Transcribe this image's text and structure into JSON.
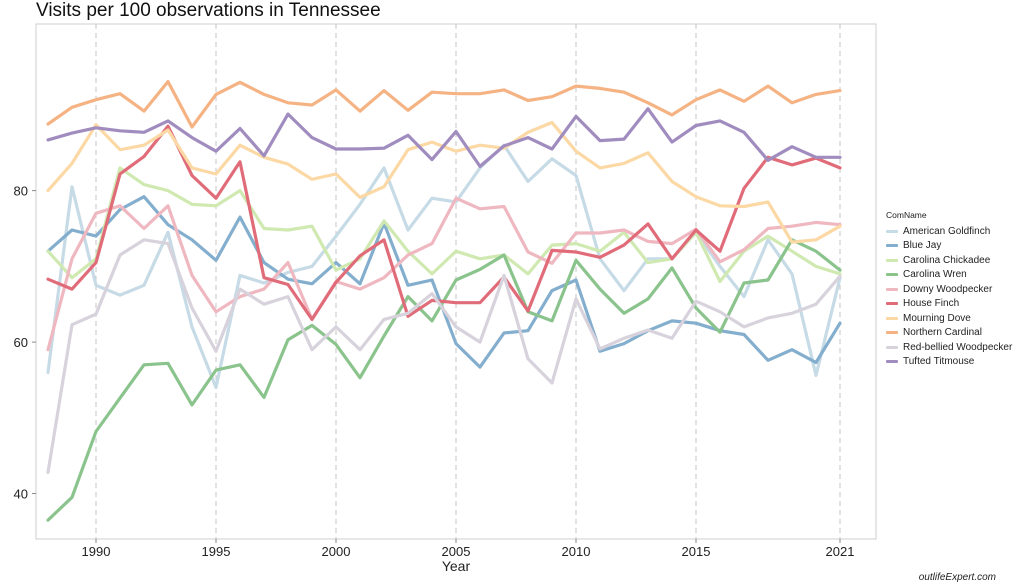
{
  "chart_data": {
    "type": "line",
    "title": "Visits per 100 observations in Tennessee",
    "xlabel": "Year",
    "ylabel": "",
    "xlim": [
      1987.5,
      2022.5
    ],
    "ylim": [
      34,
      102
    ],
    "x_ticks": [
      1990,
      1995,
      2000,
      2005,
      2010,
      2015,
      2021
    ],
    "y_ticks": [
      40,
      60,
      80
    ],
    "grid": "dashed vertical lines at x ticks",
    "legend": {
      "title": "ComName",
      "position": "right"
    },
    "x": [
      1988,
      1989,
      1990,
      1991,
      1992,
      1993,
      1994,
      1995,
      1996,
      1997,
      1998,
      1999,
      2000,
      2001,
      2002,
      2003,
      2004,
      2005,
      2006,
      2007,
      2008,
      2009,
      2010,
      2011,
      2012,
      2013,
      2014,
      2015,
      2016,
      2017,
      2018,
      2019,
      2020,
      2021
    ],
    "series": [
      {
        "name": "American Goldfinch",
        "color": "#c6dbe6",
        "values": [
          56,
          80.5,
          67.5,
          66.2,
          67.5,
          74.5,
          62,
          54,
          68.8,
          67.8,
          69.2,
          70,
          74,
          78.2,
          83,
          74.8,
          79,
          78.5,
          83,
          86,
          81.2,
          84.2,
          82,
          71,
          66.8,
          71,
          71,
          74.5,
          70,
          66,
          73.5,
          69,
          55.6,
          68.5
        ]
      },
      {
        "name": "Blue Jay",
        "color": "#84aecd",
        "values": [
          72,
          74.8,
          74,
          77.5,
          79.2,
          75.5,
          73.5,
          70.8,
          76.5,
          70.5,
          68.3,
          67.7,
          70.5,
          67.7,
          75.7,
          67.5,
          68.2,
          59.8,
          56.7,
          61.2,
          61.5,
          66.8,
          68.2,
          58.8,
          59.8,
          61.5,
          62.8,
          62.5,
          61.5,
          61,
          57.6,
          59,
          57.3,
          62.5
        ]
      },
      {
        "name": "Carolina Chickadee",
        "color": "#cfe9b1",
        "values": [
          72,
          68.5,
          71,
          83,
          80.8,
          80,
          78.2,
          78,
          80,
          75,
          74.8,
          75.3,
          69.5,
          71,
          76,
          72,
          69,
          72,
          71,
          71.5,
          69,
          72.8,
          73,
          72,
          74.5,
          70.5,
          71,
          74.5,
          68,
          72,
          74,
          72,
          70,
          69
        ]
      },
      {
        "name": "Carolina Wren",
        "color": "#8ac48c",
        "values": [
          36.5,
          39.5,
          48.2,
          52.6,
          57,
          57.2,
          51.7,
          56.3,
          57,
          52.7,
          60.3,
          62.2,
          59.7,
          55.3,
          60.8,
          66,
          62.8,
          68.2,
          69.6,
          71.5,
          64,
          62.8,
          70.8,
          67,
          63.8,
          65.7,
          69.8,
          64.5,
          61.3,
          67.8,
          68.2,
          73.5,
          72,
          69.5
        ]
      },
      {
        "name": "Downy Woodpecker",
        "color": "#efb8c1",
        "values": [
          59,
          71,
          77,
          78,
          75,
          78,
          68.8,
          64,
          66,
          67,
          70.5,
          63,
          68,
          67,
          68.5,
          71.5,
          73,
          79,
          77.6,
          77.9,
          71.9,
          70.4,
          74.4,
          74.4,
          74.8,
          73.3,
          73,
          74.9,
          70.6,
          72.2,
          75,
          75.3,
          75.8,
          75.5
        ]
      },
      {
        "name": "House Finch",
        "color": "#e16c79",
        "values": [
          68.3,
          67,
          70.5,
          82.2,
          84.5,
          88.5,
          82,
          79,
          83.8,
          68.5,
          67.6,
          63,
          67.9,
          71.4,
          73.5,
          63.4,
          65.5,
          65.2,
          65.2,
          68.6,
          64.1,
          72.1,
          71.9,
          71.2,
          72.8,
          75.6,
          71,
          74.8,
          72,
          80.3,
          84.4,
          83.4,
          84.3,
          83
        ]
      },
      {
        "name": "Mourning Dove",
        "color": "#fbd8a4",
        "values": [
          80,
          83.6,
          88.7,
          85.4,
          86,
          88,
          83,
          82.2,
          86,
          84.4,
          83.5,
          81.5,
          82.2,
          79.1,
          80.5,
          85.4,
          86.4,
          85.2,
          86,
          85.6,
          87.7,
          89,
          85.2,
          83,
          83.6,
          85,
          81.2,
          79.2,
          78,
          77.9,
          78.5,
          73.2,
          73.5,
          75.3
        ]
      },
      {
        "name": "Northern Cardinal",
        "color": "#f5b384",
        "values": [
          88.8,
          91,
          92,
          92.8,
          90.5,
          94.4,
          88.4,
          92.7,
          94.3,
          92.7,
          91.6,
          91.3,
          93.3,
          90.5,
          93.2,
          90.6,
          93,
          92.8,
          92.8,
          93.3,
          91.9,
          92.4,
          93.8,
          93.5,
          93,
          91.6,
          90,
          92,
          93.3,
          91.8,
          93.8,
          91.6,
          92.7,
          93.2
        ]
      },
      {
        "name": "Red-bellied Woodpecker",
        "color": "#d7d2dc",
        "values": [
          42.8,
          62.3,
          63.7,
          71.5,
          73.5,
          73,
          64.5,
          58.8,
          67,
          65,
          66,
          59,
          62,
          59,
          63,
          63.8,
          66.4,
          62,
          60,
          68.8,
          57.8,
          54.6,
          65.7,
          59.1,
          60.5,
          61.6,
          60.5,
          65.4,
          64,
          62,
          63.2,
          63.8,
          65,
          68.7
        ]
      },
      {
        "name": "Tufted Titmouse",
        "color": "#a08cbe",
        "values": [
          86.7,
          87.6,
          88.3,
          87.9,
          87.7,
          89.2,
          87,
          85.2,
          88.2,
          84.6,
          90.1,
          87,
          85.5,
          85.5,
          85.6,
          87.3,
          84.1,
          87.8,
          83.2,
          85.9,
          87,
          85.5,
          89.8,
          86.6,
          86.8,
          90.8,
          86.4,
          88.6,
          89.2,
          87.7,
          84,
          85.8,
          84.4,
          84.4
        ]
      }
    ]
  },
  "watermark": "outlifeExpert.com"
}
